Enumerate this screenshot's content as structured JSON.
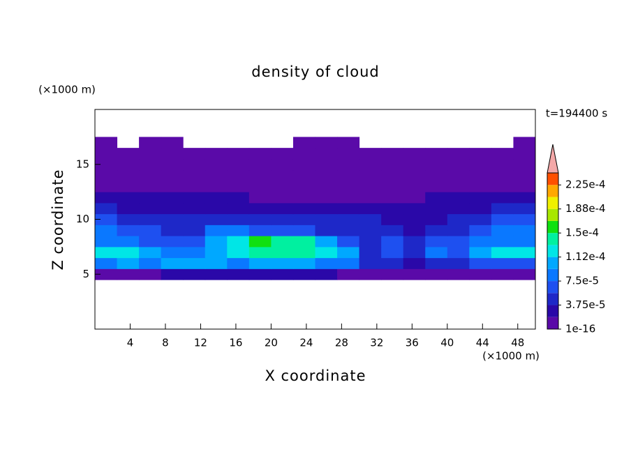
{
  "chart_data": {
    "type": "contour",
    "title": "density of cloud",
    "time_label": "t=194400 s",
    "xlabel": "X coordinate",
    "ylabel": "Z coordinate",
    "x_unit": "(×1000 m)",
    "y_unit": "(×1000 m)",
    "xlim": [
      0,
      50
    ],
    "ylim": [
      0,
      20
    ],
    "xticks": [
      4,
      8,
      12,
      16,
      20,
      24,
      28,
      32,
      36,
      40,
      44,
      48
    ],
    "yticks": [
      5,
      10,
      15
    ],
    "x": [
      1.25,
      3.75,
      6.25,
      8.75,
      11.25,
      13.75,
      16.25,
      18.75,
      21.25,
      23.75,
      26.25,
      28.75,
      31.25,
      33.75,
      36.25,
      38.75,
      41.25,
      43.75,
      46.25,
      48.75
    ],
    "y": [
      5,
      6,
      7,
      8,
      9,
      10,
      11,
      12,
      13,
      14,
      15,
      16,
      17
    ],
    "z": [
      [
        1e-05,
        1e-05,
        1e-05,
        2.5e-05,
        2.5e-05,
        2.5e-05,
        2.5e-05,
        2.5e-05,
        2.5e-05,
        2.5e-05,
        2.5e-05,
        1e-05,
        1e-05,
        1e-05,
        1e-05,
        1e-05,
        1e-05,
        1e-05,
        1e-05,
        1e-05
      ],
      [
        8.5e-05,
        0.0001,
        8.5e-05,
        0.0001,
        0.0001,
        0.0001,
        8.5e-05,
        0.0001,
        0.0001,
        0.0001,
        8.5e-05,
        8.5e-05,
        4.5e-05,
        4.5e-05,
        2.5e-05,
        4.5e-05,
        4.5e-05,
        6.5e-05,
        6.5e-05,
        6.5e-05
      ],
      [
        0.00012,
        0.00012,
        0.0001,
        8.5e-05,
        8.5e-05,
        0.0001,
        0.00012,
        0.00014,
        0.00014,
        0.00014,
        0.00012,
        0.0001,
        4.5e-05,
        6.5e-05,
        4.5e-05,
        8.5e-05,
        6.5e-05,
        0.0001,
        0.00012,
        0.00012
      ],
      [
        8.5e-05,
        8.5e-05,
        6.5e-05,
        6.5e-05,
        6.5e-05,
        0.0001,
        0.00012,
        0.00016,
        0.00014,
        0.00014,
        0.0001,
        6.5e-05,
        4.5e-05,
        6.5e-05,
        4.5e-05,
        6.5e-05,
        6.5e-05,
        8.5e-05,
        8.5e-05,
        8.5e-05
      ],
      [
        8.5e-05,
        6.5e-05,
        6.5e-05,
        4.5e-05,
        4.5e-05,
        8.5e-05,
        8.5e-05,
        6.5e-05,
        6.5e-05,
        6.5e-05,
        4.5e-05,
        4.5e-05,
        4.5e-05,
        4.5e-05,
        2.5e-05,
        4.5e-05,
        4.5e-05,
        6.5e-05,
        8.5e-05,
        8.5e-05
      ],
      [
        6.5e-05,
        4.5e-05,
        4.5e-05,
        4.5e-05,
        4.5e-05,
        4.5e-05,
        4.5e-05,
        4.5e-05,
        4.5e-05,
        4.5e-05,
        4.5e-05,
        4.5e-05,
        4.5e-05,
        2.5e-05,
        2.5e-05,
        2.5e-05,
        4.5e-05,
        4.5e-05,
        6.5e-05,
        6.5e-05
      ],
      [
        4.5e-05,
        2.5e-05,
        2.5e-05,
        2.5e-05,
        2.5e-05,
        2.5e-05,
        2.5e-05,
        2.5e-05,
        2.5e-05,
        2.5e-05,
        2.5e-05,
        2.5e-05,
        2.5e-05,
        2.5e-05,
        2.5e-05,
        2.5e-05,
        2.5e-05,
        2.5e-05,
        4.5e-05,
        4.5e-05
      ],
      [
        2.5e-05,
        2.5e-05,
        2.5e-05,
        2.5e-05,
        2.5e-05,
        2.5e-05,
        2.5e-05,
        1e-05,
        1e-05,
        1e-05,
        1e-05,
        1e-05,
        1e-05,
        1e-05,
        1e-05,
        2.5e-05,
        2.5e-05,
        2.5e-05,
        2.5e-05,
        2.5e-05
      ],
      [
        1e-05,
        1e-05,
        1e-05,
        1e-05,
        1e-05,
        1e-05,
        1e-05,
        1e-05,
        1e-05,
        1e-05,
        1e-05,
        1e-05,
        1e-05,
        1e-05,
        1e-05,
        1e-05,
        1e-05,
        1e-05,
        1e-05,
        1e-05
      ],
      [
        1e-05,
        1e-05,
        1e-05,
        1e-05,
        1e-05,
        1e-05,
        1e-05,
        1e-05,
        1e-05,
        1e-05,
        1e-05,
        1e-05,
        1e-05,
        1e-05,
        1e-05,
        1e-05,
        1e-05,
        1e-05,
        1e-05,
        1e-05
      ],
      [
        1e-05,
        1e-05,
        1e-05,
        1e-05,
        1e-05,
        1e-05,
        1e-05,
        1e-05,
        1e-05,
        1e-05,
        1e-05,
        1e-05,
        1e-05,
        1e-05,
        1e-05,
        1e-05,
        1e-05,
        1e-05,
        1e-05,
        1e-05
      ],
      [
        1e-05,
        1e-05,
        1e-05,
        1e-05,
        1e-05,
        1e-05,
        1e-05,
        1e-05,
        1e-05,
        1e-05,
        1e-05,
        1e-05,
        1e-05,
        1e-05,
        1e-05,
        1e-05,
        1e-05,
        1e-05,
        1e-05,
        1e-05
      ],
      [
        1e-05,
        null,
        1e-05,
        1e-05,
        null,
        null,
        null,
        null,
        null,
        1e-05,
        1e-05,
        1e-05,
        null,
        null,
        null,
        null,
        null,
        null,
        null,
        1e-05
      ]
    ],
    "levels": [
      1e-16,
      1.875e-05,
      3.75e-05,
      5.625e-05,
      7.5e-05,
      9.375e-05,
      0.0001125,
      0.00013125,
      0.00015,
      0.00016875,
      0.0001875,
      0.00020625,
      0.000225,
      0.00024375
    ],
    "colors": [
      "#5a0aa8",
      "#2a08a8",
      "#1e28c8",
      "#1e50f0",
      "#0a78ff",
      "#00a8ff",
      "#00e6e6",
      "#00f0a0",
      "#10e010",
      "#a8e800",
      "#f0f000",
      "#ffa800",
      "#ff5000"
    ],
    "extend_color": "#f4a8a8",
    "colorbar_ticks": [
      {
        "value": 1e-16,
        "label": "1e-16"
      },
      {
        "value": 3.75e-05,
        "label": "3.75e-5"
      },
      {
        "value": 7.5e-05,
        "label": "7.5e-5"
      },
      {
        "value": 0.0001125,
        "label": "1.12e-4"
      },
      {
        "value": 0.00015,
        "label": "1.5e-4"
      },
      {
        "value": 0.0001875,
        "label": "1.88e-4"
      },
      {
        "value": 0.000225,
        "label": "2.25e-4"
      }
    ]
  }
}
